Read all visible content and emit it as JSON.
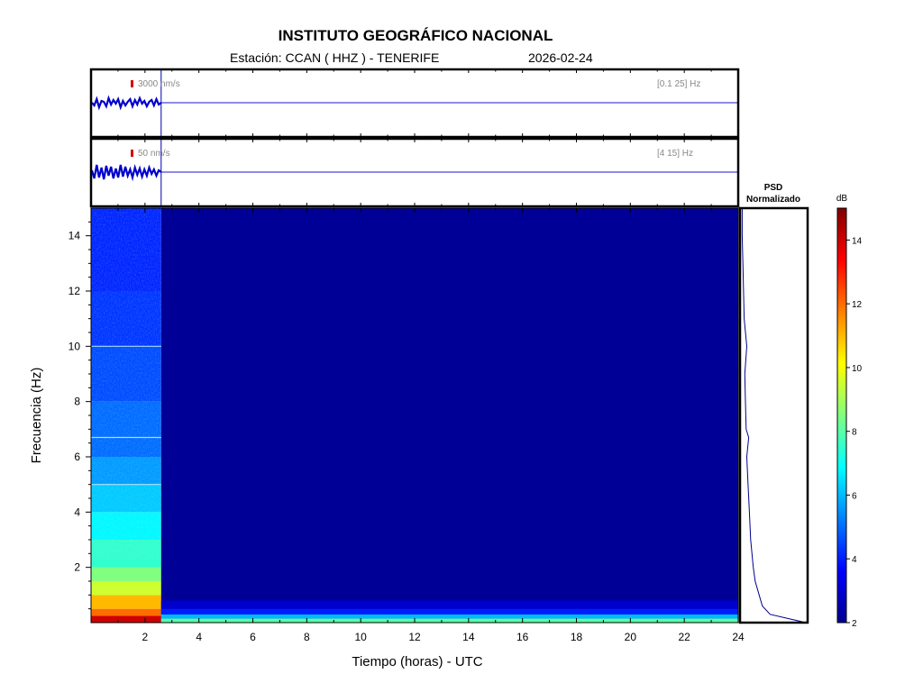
{
  "header": {
    "title": "INSTITUTO GEOGRÁFICO NACIONAL",
    "station_line": "Estación:  CCAN ( HHZ ) - TENERIFE",
    "date": "2026-02-24"
  },
  "chart_data": [
    {
      "type": "line",
      "panel": "seismogram-broadband",
      "scale_label": "3000 nm/s",
      "band_label": "[0.1 25] Hz",
      "x_range_hours": [
        0,
        24
      ],
      "data_end_hour": 2.6,
      "y": [
        0.0,
        -0.15,
        0.2,
        -0.25,
        0.1,
        0.05,
        -0.2,
        0.25,
        -0.1,
        0.15,
        -0.05,
        0.2,
        -0.25,
        0.1,
        -0.15,
        0.05,
        0.2,
        -0.2,
        0.15,
        -0.1,
        0.25,
        -0.05,
        0.1,
        -0.2,
        0.05,
        0.15,
        -0.15,
        0.2,
        -0.1,
        0.0
      ]
    },
    {
      "type": "line",
      "panel": "seismogram-filtered",
      "scale_label": "50 nm/s",
      "band_label": "[4 15] Hz",
      "x_range_hours": [
        0,
        24
      ],
      "data_end_hour": 2.6,
      "y": [
        0.1,
        -0.35,
        0.4,
        -0.3,
        0.25,
        -0.4,
        0.35,
        -0.2,
        0.3,
        -0.35,
        0.2,
        -0.3,
        0.4,
        -0.25,
        0.3,
        -0.2,
        0.15,
        -0.3,
        0.25,
        -0.15,
        0.2,
        -0.25,
        0.15,
        -0.2,
        0.25,
        -0.1,
        0.15,
        -0.2,
        0.1,
        0.0
      ]
    },
    {
      "type": "heatmap",
      "panel": "spectrogram",
      "xlabel": "Tiempo (horas) - UTC",
      "ylabel": "Frecuencia  (Hz)",
      "xlim": [
        0,
        24
      ],
      "ylim": [
        0,
        15
      ],
      "xticks": [
        2,
        4,
        6,
        8,
        10,
        12,
        14,
        16,
        18,
        20,
        22,
        24
      ],
      "yticks": [
        2,
        4,
        6,
        8,
        10,
        12,
        14
      ],
      "data_end_hour": 2.6,
      "freq_bands_hz": [
        0,
        0.25,
        0.5,
        1,
        1.5,
        2,
        3,
        4,
        5,
        6,
        8,
        10,
        12,
        15
      ],
      "power_db": [
        14,
        12,
        11,
        9.5,
        8.5,
        7.5,
        6.8,
        6.2,
        5.6,
        5.0,
        4.6,
        4.3,
        4.1
      ],
      "no_data_db": 2.3,
      "no_data_low_band_db": [
        8,
        6,
        4,
        3
      ]
    },
    {
      "type": "line",
      "panel": "psd",
      "title_line1": "PSD",
      "title_line2": "Normalizado",
      "freq_hz": [
        0,
        0.3,
        0.6,
        1,
        1.5,
        2,
        3,
        4,
        5,
        6,
        6.7,
        7,
        8,
        9,
        10,
        11,
        12,
        13,
        14,
        15
      ],
      "psd_norm": [
        1.0,
        0.45,
        0.33,
        0.28,
        0.22,
        0.19,
        0.15,
        0.13,
        0.11,
        0.09,
        0.12,
        0.08,
        0.07,
        0.06,
        0.09,
        0.05,
        0.04,
        0.03,
        0.02,
        0.02
      ]
    },
    {
      "type": "heatmap",
      "panel": "colorbar",
      "unit": "dB",
      "range": [
        2,
        15
      ],
      "ticks": [
        2,
        4,
        6,
        8,
        10,
        12,
        14
      ]
    }
  ]
}
